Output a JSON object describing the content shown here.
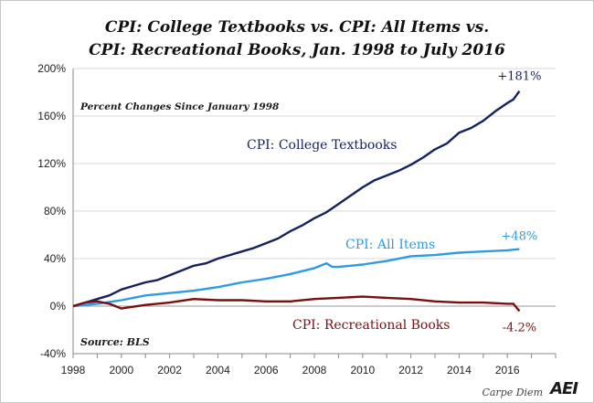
{
  "chart_data": {
    "type": "line",
    "title_line1": "CPI: College Textbooks vs. CPI: All Items vs.",
    "title_line2": "CPI: Recreational Books, Jan. 1998 to July 2016",
    "subtitle": "Percent Changes Since January 1998",
    "source": "Source: BLS",
    "xlim": [
      1998,
      2018
    ],
    "ylim": [
      -40,
      200
    ],
    "x_ticks": [
      1998,
      2000,
      2002,
      2004,
      2006,
      2008,
      2010,
      2012,
      2014,
      2016
    ],
    "y_ticks": [
      -40,
      0,
      40,
      80,
      120,
      160,
      200
    ],
    "y_tick_labels": [
      "-40%",
      "0%",
      "40%",
      "80%",
      "120%",
      "160%",
      "200%"
    ],
    "grid": true,
    "series": [
      {
        "name": "CPI: College Textbooks",
        "color": "#14215e",
        "end_label": "+181%",
        "x": [
          1998,
          1998.5,
          1999,
          1999.5,
          2000,
          2000.5,
          2001,
          2001.5,
          2002,
          2002.5,
          2003,
          2003.5,
          2004,
          2004.5,
          2005,
          2005.5,
          2006,
          2006.5,
          2007,
          2007.5,
          2008,
          2008.5,
          2009,
          2009.5,
          2010,
          2010.5,
          2011,
          2011.5,
          2012,
          2012.5,
          2013,
          2013.5,
          2014,
          2014.5,
          2015,
          2015.5,
          2016,
          2016.25,
          2016.5
        ],
        "y": [
          0,
          3,
          6,
          9,
          14,
          17,
          20,
          22,
          26,
          30,
          34,
          36,
          40,
          43,
          46,
          49,
          53,
          57,
          63,
          68,
          74,
          79,
          86,
          93,
          100,
          106,
          110,
          114,
          119,
          125,
          132,
          137,
          146,
          150,
          156,
          164,
          171,
          174,
          181
        ]
      },
      {
        "name": "CPI: All Items",
        "color": "#2e9be0",
        "end_label": "+48%",
        "x": [
          1998,
          1999,
          2000,
          2001,
          2002,
          2003,
          2004,
          2005,
          2006,
          2007,
          2008,
          2008.5,
          2008.75,
          2009,
          2009.5,
          2010,
          2011,
          2012,
          2013,
          2014,
          2015,
          2016,
          2016.5
        ],
        "y": [
          0,
          2,
          5,
          9,
          11,
          13,
          16,
          20,
          23,
          27,
          32,
          36,
          33,
          33,
          34,
          35,
          38,
          42,
          43,
          45,
          46,
          47,
          48
        ]
      },
      {
        "name": "CPI: Recreational Books",
        "color": "#7a0f0f",
        "end_label": "-4.2%",
        "x": [
          1998,
          1998.5,
          1999,
          1999.5,
          2000,
          2001,
          2002,
          2003,
          2004,
          2005,
          2006,
          2007,
          2008,
          2009,
          2010,
          2011,
          2012,
          2013,
          2014,
          2015,
          2016,
          2016.25,
          2016.5
        ],
        "y": [
          0,
          3,
          4,
          2,
          -2,
          1,
          3,
          6,
          5,
          5,
          4,
          4,
          6,
          7,
          8,
          7,
          6,
          4,
          3,
          3,
          2,
          2,
          -4.2
        ]
      }
    ]
  },
  "branding": {
    "footer": "Carpe Diem",
    "logo": "AEI"
  }
}
